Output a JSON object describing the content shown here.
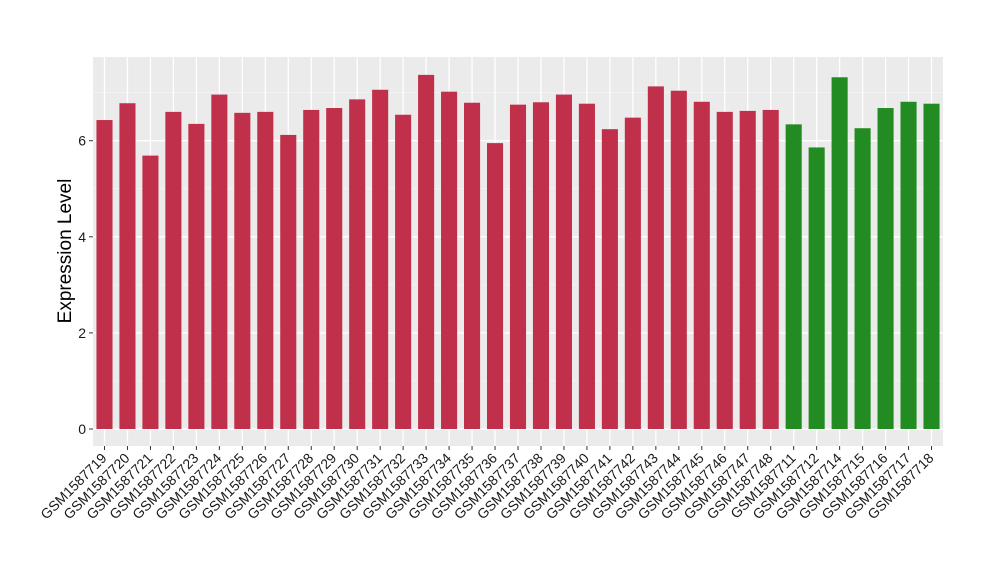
{
  "chart_data": {
    "type": "bar",
    "title": "",
    "xlabel": "",
    "ylabel": "Expression Level",
    "ylim": [
      0,
      7.6
    ],
    "yticks": [
      0,
      2,
      4,
      6
    ],
    "grid": true,
    "legend": "none",
    "colors": {
      "group1": "#c0304a",
      "group2": "#228b22",
      "panel": "#ebebeb",
      "grid_major": "#ffffff",
      "grid_minor": "#f5f5f5"
    },
    "categories": [
      "GSM1587719",
      "GSM1587720",
      "GSM1587721",
      "GSM1587722",
      "GSM1587723",
      "GSM1587724",
      "GSM1587725",
      "GSM1587726",
      "GSM1587727",
      "GSM1587728",
      "GSM1587729",
      "GSM1587730",
      "GSM1587731",
      "GSM1587732",
      "GSM1587733",
      "GSM1587734",
      "GSM1587735",
      "GSM1587736",
      "GSM1587737",
      "GSM1587738",
      "GSM1587739",
      "GSM1587740",
      "GSM1587741",
      "GSM1587742",
      "GSM1587743",
      "GSM1587744",
      "GSM1587745",
      "GSM1587746",
      "GSM1587747",
      "GSM1587748",
      "GSM1587711",
      "GSM1587712",
      "GSM1587714",
      "GSM1587715",
      "GSM1587716",
      "GSM1587717",
      "GSM1587718"
    ],
    "values": [
      6.43,
      6.78,
      5.69,
      6.6,
      6.35,
      6.96,
      6.58,
      6.6,
      6.12,
      6.64,
      6.68,
      6.86,
      7.06,
      6.54,
      7.37,
      7.02,
      6.79,
      5.95,
      6.75,
      6.8,
      6.96,
      6.77,
      6.24,
      6.48,
      7.13,
      7.04,
      6.81,
      6.6,
      6.62,
      6.64,
      6.34,
      5.86,
      7.32,
      6.26,
      6.68,
      6.81,
      6.77
    ],
    "groups": [
      "group1",
      "group1",
      "group1",
      "group1",
      "group1",
      "group1",
      "group1",
      "group1",
      "group1",
      "group1",
      "group1",
      "group1",
      "group1",
      "group1",
      "group1",
      "group1",
      "group1",
      "group1",
      "group1",
      "group1",
      "group1",
      "group1",
      "group1",
      "group1",
      "group1",
      "group1",
      "group1",
      "group1",
      "group1",
      "group1",
      "group2",
      "group2",
      "group2",
      "group2",
      "group2",
      "group2",
      "group2"
    ]
  }
}
